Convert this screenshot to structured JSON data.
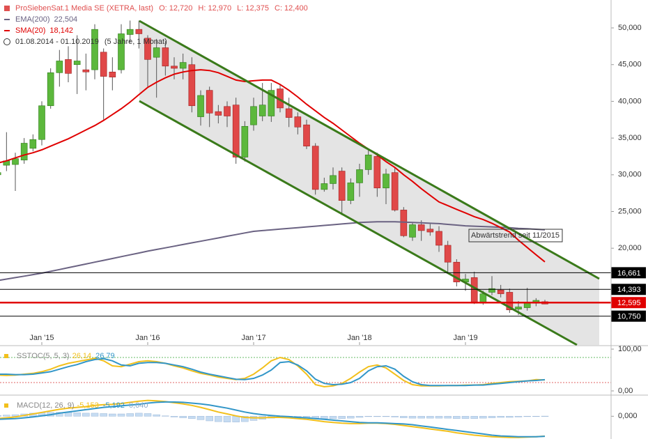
{
  "chart_data": [
    {
      "type": "candlestick",
      "title": "ProSiebenSat.1 Media SE (XETRA, last)",
      "ohlc_labels": [
        "O: 12,720",
        "H: 12,970",
        "L: 12,375",
        "C: 12,400"
      ],
      "period": "01.08.2014 - 01.10.2019",
      "period_note": "(5 Jahre, 1 Monat)",
      "annotation": "Abwärtstrend seit 11/2015",
      "categories": [
        null,
        null,
        null,
        null,
        null,
        "Jan '15",
        null,
        null,
        null,
        null,
        null,
        null,
        null,
        null,
        null,
        null,
        null,
        "Jan '16",
        null,
        null,
        null,
        null,
        null,
        null,
        null,
        null,
        null,
        null,
        null,
        "Jan '17",
        null,
        null,
        null,
        null,
        null,
        null,
        null,
        null,
        null,
        null,
        null,
        "Jan '18",
        null,
        null,
        null,
        null,
        null,
        null,
        null,
        null,
        null,
        null,
        null,
        "Jan '19",
        null,
        null,
        null,
        null,
        null,
        null,
        null,
        null,
        null
      ],
      "open": [
        30.0,
        31.3,
        31.4,
        32.0,
        33.6,
        34.8,
        39.4,
        43.9,
        45.7,
        45.0,
        44.3,
        44.3,
        46.7,
        44.0,
        44.3,
        49.1,
        49.8,
        48.6,
        46.0,
        47.3,
        44.8,
        44.5,
        45.0,
        37.9,
        41.5,
        38.6,
        39.3,
        39.5,
        32.4,
        36.8,
        38.0,
        38.0,
        41.7,
        39.0,
        37.9,
        36.8,
        33.9,
        28.0,
        28.8,
        30.5,
        26.5,
        28.9,
        30.7,
        32.5,
        28.2,
        30.3,
        25.2,
        21.5,
        23.2,
        22.6,
        22.3,
        20.4,
        18.1,
        15.4,
        16.0,
        12.5,
        14.0,
        14.3,
        14.0,
        11.7,
        11.9,
        12.5,
        12.72
      ],
      "high": [
        31.0,
        35.8,
        33.0,
        35.0,
        35.5,
        40.0,
        44.5,
        47.0,
        47.5,
        49.0,
        46.5,
        50.5,
        47.2,
        46.0,
        50.5,
        51.0,
        51.0,
        49.0,
        48.5,
        48.2,
        46.0,
        46.5,
        46.0,
        41.5,
        42.0,
        39.5,
        40.0,
        40.5,
        37.3,
        40.5,
        42.5,
        42.5,
        42.3,
        40.5,
        38.5,
        37.5,
        34.3,
        29.6,
        31.0,
        31.0,
        29.5,
        31.5,
        33.3,
        33.0,
        30.8,
        31.0,
        25.6,
        23.5,
        23.8,
        23.3,
        23.0,
        21.0,
        18.5,
        16.5,
        16.8,
        14.2,
        16.2,
        15.0,
        14.5,
        12.8,
        14.6,
        13.2,
        12.97
      ],
      "low": [
        29.5,
        30.5,
        27.8,
        31.5,
        33.2,
        34.0,
        39.0,
        42.0,
        42.6,
        41.0,
        41.5,
        43.0,
        37.5,
        41.5,
        43.8,
        48.0,
        47.2,
        42.0,
        40.5,
        43.5,
        43.0,
        43.0,
        38.5,
        36.7,
        36.5,
        37.0,
        36.5,
        31.5,
        31.8,
        36.0,
        37.3,
        37.2,
        38.5,
        36.5,
        35.5,
        33.5,
        27.3,
        27.7,
        28.0,
        24.5,
        26.0,
        27.0,
        30.0,
        27.0,
        26.0,
        25.0,
        21.5,
        21.0,
        21.0,
        21.7,
        19.5,
        16.8,
        14.8,
        14.2,
        12.4,
        12.3,
        13.6,
        13.3,
        11.2,
        10.9,
        11.5,
        12.1,
        12.375
      ],
      "close": [
        30.3,
        31.9,
        32.2,
        34.3,
        34.8,
        39.4,
        43.9,
        45.5,
        43.8,
        45.5,
        44.0,
        49.8,
        43.4,
        43.3,
        49.2,
        49.8,
        49.2,
        45.7,
        47.3,
        44.8,
        44.5,
        45.3,
        39.4,
        40.8,
        38.4,
        38.1,
        38.0,
        32.4,
        36.6,
        39.3,
        39.5,
        41.5,
        39.1,
        37.8,
        36.5,
        33.9,
        28.0,
        28.8,
        29.9,
        26.5,
        28.9,
        30.7,
        32.7,
        28.2,
        30.1,
        25.2,
        21.7,
        23.2,
        22.4,
        22.2,
        20.4,
        18.1,
        15.4,
        15.8,
        12.5,
        13.8,
        14.5,
        13.8,
        11.6,
        12.0,
        12.5,
        12.9,
        12.4
      ],
      "up_color": "#5cb83c",
      "down_color": "#e04848",
      "series": [
        {
          "name": "EMA(200)",
          "legend_value": "22,504",
          "color": "#6a6282",
          "values": [
            15.6,
            15.8,
            16.0,
            16.2,
            16.4,
            16.6,
            16.85,
            17.1,
            17.35,
            17.6,
            17.85,
            18.1,
            18.35,
            18.6,
            18.85,
            19.1,
            19.35,
            19.6,
            19.83,
            20.05,
            20.28,
            20.5,
            20.73,
            20.95,
            21.18,
            21.4,
            21.63,
            21.85,
            22.08,
            22.3,
            22.4,
            22.5,
            22.6,
            22.7,
            22.8,
            22.9,
            23.0,
            23.1,
            23.2,
            23.3,
            23.4,
            23.5,
            23.55,
            23.6,
            23.6,
            23.6,
            23.55,
            23.5,
            23.45,
            23.4,
            23.35,
            23.25,
            23.15,
            23.05,
            23.0,
            22.95,
            22.9,
            22.85,
            22.8,
            22.7,
            22.65,
            22.58,
            22.504
          ]
        },
        {
          "name": "SMA(20)",
          "legend_value": "18,142",
          "color": "#e00000",
          "values": [
            31.6,
            31.9,
            32.3,
            32.7,
            33.0,
            33.4,
            33.9,
            34.4,
            34.9,
            35.5,
            36.1,
            36.7,
            37.4,
            38.2,
            39.0,
            39.9,
            40.9,
            41.9,
            42.6,
            43.2,
            43.7,
            44.0,
            44.2,
            44.3,
            44.2,
            43.9,
            43.4,
            42.9,
            42.7,
            42.8,
            42.9,
            42.9,
            42.3,
            41.5,
            40.6,
            39.6,
            38.7,
            37.8,
            37.0,
            36.1,
            35.2,
            34.3,
            33.5,
            32.7,
            31.8,
            31.0,
            30.0,
            29.1,
            28.1,
            27.2,
            26.3,
            25.8,
            25.3,
            24.8,
            24.3,
            23.9,
            23.4,
            22.8,
            22.2,
            21.1,
            20.1,
            19.1,
            18.142
          ]
        }
      ],
      "levels": [
        {
          "value": 16.661,
          "label": "16,661",
          "color": "#000000"
        },
        {
          "value": 14.393,
          "label": "14,393",
          "color": "#000000"
        },
        {
          "value": 12.595,
          "label": "12,595",
          "color": "#e00000"
        },
        {
          "value": 10.75,
          "label": "10,750",
          "color": "#000000"
        }
      ],
      "ylim": [
        6.83,
        53.8
      ],
      "yticks": [
        {
          "value": 50,
          "label": "50,000"
        },
        {
          "value": 45,
          "label": "45,000"
        },
        {
          "value": 40,
          "label": "40,000"
        },
        {
          "value": 35,
          "label": "35,000"
        },
        {
          "value": 30,
          "label": "30,000"
        },
        {
          "value": 25,
          "label": "25,000"
        },
        {
          "value": 20,
          "label": "20,000"
        }
      ]
    },
    {
      "type": "line",
      "series": [
        {
          "name": "SSTOC(5, 5, 3)",
          "legend_value": "26,14",
          "color": "#f2c01c",
          "type": "line",
          "values": [
            38,
            37,
            38,
            40,
            42,
            46,
            52,
            60,
            66,
            70,
            74,
            78,
            72,
            60,
            58,
            64,
            70,
            72,
            70,
            66,
            60,
            55,
            48,
            42,
            38,
            33,
            30,
            27,
            30,
            40,
            55,
            72,
            80,
            75,
            60,
            40,
            15,
            10,
            12,
            18,
            30,
            45,
            58,
            62,
            55,
            40,
            25,
            15,
            12,
            12,
            12,
            13,
            13,
            14,
            14,
            15,
            18,
            20,
            22,
            23,
            24,
            27,
            26.14
          ]
        },
        {
          "legend_value": "26,79",
          "color": "#3296c8",
          "type": "line",
          "values": [
            40,
            40,
            39,
            39,
            40,
            43,
            46,
            52,
            58,
            63,
            70,
            75,
            77,
            72,
            62,
            60,
            66,
            68,
            68,
            66,
            62,
            58,
            52,
            45,
            40,
            36,
            32,
            28,
            27,
            30,
            38,
            50,
            68,
            70,
            62,
            48,
            28,
            18,
            15,
            16,
            20,
            30,
            48,
            58,
            60,
            52,
            35,
            22,
            15,
            13,
            13,
            13,
            13,
            13,
            14,
            14,
            16,
            18,
            20,
            22,
            24,
            25,
            26.79
          ]
        }
      ],
      "bands": [
        {
          "value": 80,
          "color": "#66bb66"
        },
        {
          "value": 20,
          "color": "#e06666"
        }
      ],
      "ylim": [
        -6.7,
        106.7
      ],
      "yticks": [
        {
          "value": 100,
          "label": "100,00"
        },
        {
          "value": 0,
          "label": "0,00"
        }
      ]
    },
    {
      "type": "line",
      "series": [
        {
          "legend_value": "0,040",
          "color": "#c6dcf2",
          "type": "bar",
          "values": [
            0.2,
            0.3,
            0.4,
            0.6,
            0.8,
            0.9,
            1.0,
            1.0,
            1.0,
            0.9,
            0.8,
            0.8,
            0.7,
            0.6,
            0.6,
            0.7,
            0.8,
            0.7,
            0.4,
            0.1,
            -0.2,
            -0.4,
            -0.6,
            -0.9,
            -1.2,
            -1.4,
            -1.5,
            -1.5,
            -1.4,
            -1.1,
            -0.8,
            -0.5,
            -0.3,
            -0.3,
            -0.3,
            -0.4,
            -0.5,
            -0.6,
            -0.6,
            -0.6,
            -0.5,
            -0.3,
            -0.1,
            -0.1,
            -0.1,
            -0.2,
            -0.4,
            -0.5,
            -0.5,
            -0.5,
            -0.5,
            -0.5,
            -0.6,
            -0.6,
            -0.6,
            -0.5,
            -0.4,
            -0.3,
            -0.3,
            -0.2,
            -0.1,
            0.0,
            0.04
          ]
        },
        {
          "name": "MACD(12, 26, 9)",
          "legend_value": "-5,153",
          "color": "#f2c01c",
          "type": "line",
          "values": [
            -0.6,
            -0.4,
            -0.2,
            0.2,
            0.6,
            1.0,
            1.4,
            1.8,
            2.1,
            2.3,
            2.5,
            2.8,
            3.0,
            3.1,
            3.3,
            3.6,
            3.9,
            4.1,
            4.0,
            3.8,
            3.5,
            3.2,
            2.8,
            2.3,
            1.7,
            1.1,
            0.6,
            0.1,
            -0.3,
            -0.4,
            -0.4,
            -0.3,
            -0.3,
            -0.4,
            -0.6,
            -0.8,
            -1.1,
            -1.4,
            -1.6,
            -1.8,
            -1.9,
            -1.9,
            -1.8,
            -1.8,
            -1.9,
            -2.1,
            -2.4,
            -2.7,
            -3.0,
            -3.3,
            -3.6,
            -3.9,
            -4.3,
            -4.6,
            -4.9,
            -5.1,
            -5.3,
            -5.4,
            -5.5,
            -5.5,
            -5.4,
            -5.3,
            -5.153
          ]
        },
        {
          "legend_value": "-5,192",
          "color": "#3296c8",
          "type": "line",
          "values": [
            -0.8,
            -0.7,
            -0.6,
            -0.4,
            -0.2,
            0.1,
            0.4,
            0.8,
            1.1,
            1.4,
            1.7,
            2.0,
            2.3,
            2.5,
            2.7,
            2.9,
            3.1,
            3.4,
            3.6,
            3.7,
            3.7,
            3.6,
            3.4,
            3.2,
            2.9,
            2.5,
            2.1,
            1.6,
            1.1,
            0.7,
            0.4,
            0.2,
            0.0,
            -0.1,
            -0.3,
            -0.4,
            -0.6,
            -0.8,
            -1.0,
            -1.2,
            -1.4,
            -1.6,
            -1.7,
            -1.7,
            -1.8,
            -1.9,
            -2.0,
            -2.2,
            -2.5,
            -2.8,
            -3.1,
            -3.4,
            -3.7,
            -4.0,
            -4.3,
            -4.6,
            -4.9,
            -5.1,
            -5.2,
            -5.3,
            -5.3,
            -5.3,
            -5.192
          ]
        }
      ],
      "ylim": [
        -5.9,
        5.3
      ],
      "yticks": [
        {
          "value": 0,
          "label": "0,000"
        }
      ]
    }
  ]
}
